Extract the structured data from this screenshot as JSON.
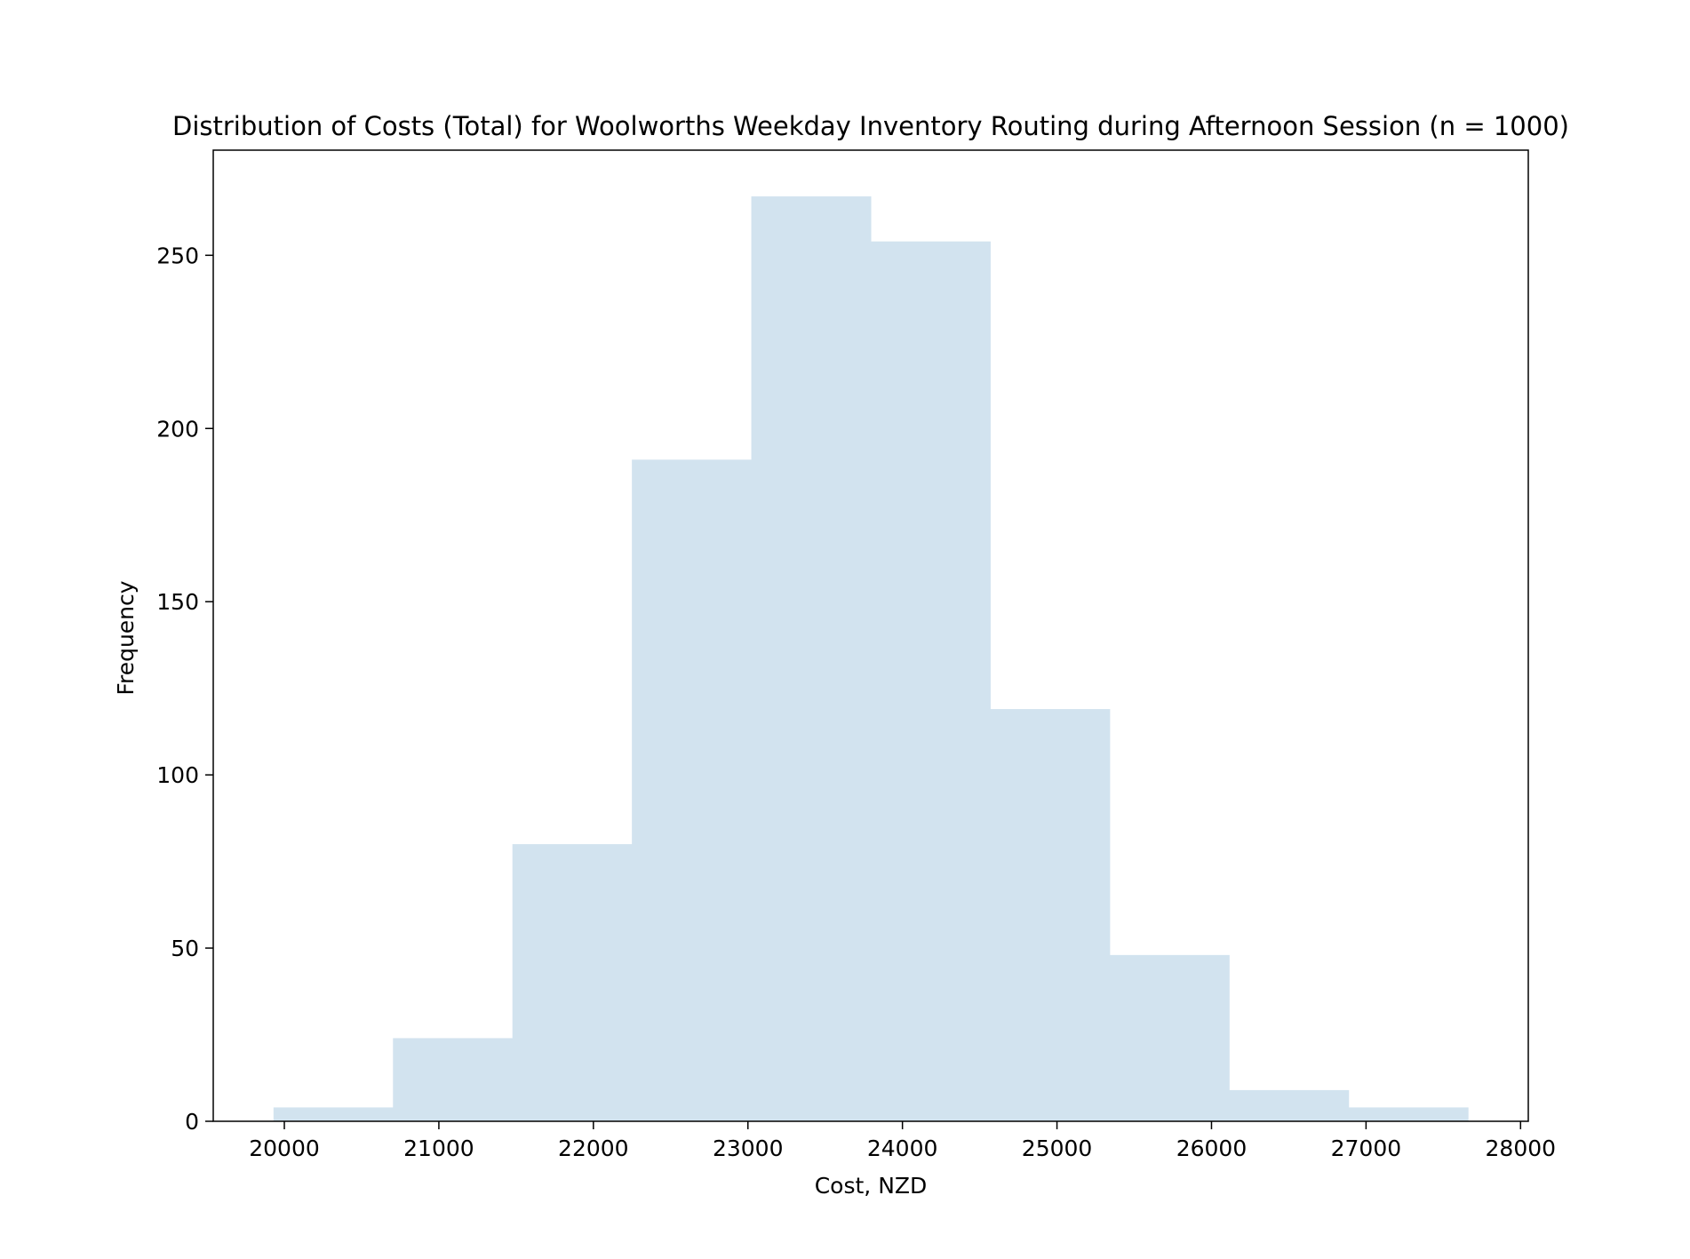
{
  "chart_data": {
    "type": "bar",
    "subtype": "histogram",
    "title": "Distribution of Costs (Total) for Woolworths Weekday Inventory Routing during Afternoon Session (n = 1000)",
    "xlabel": "Cost, NZD",
    "ylabel": "Frequency",
    "bin_edges": [
      19930,
      20703,
      21476,
      22249,
      23022,
      23795,
      24568,
      25341,
      26114,
      26887,
      27660
    ],
    "values": [
      4,
      24,
      80,
      191,
      267,
      254,
      119,
      48,
      9,
      4
    ],
    "xlim": [
      19540,
      28050
    ],
    "ylim": [
      0,
      280.35
    ],
    "xticks": [
      20000,
      21000,
      22000,
      23000,
      24000,
      25000,
      26000,
      27000,
      28000
    ],
    "yticks": [
      0,
      50,
      100,
      150,
      200,
      250
    ],
    "bar_color": "#d2e3ef",
    "grid": false,
    "legend": "none"
  }
}
